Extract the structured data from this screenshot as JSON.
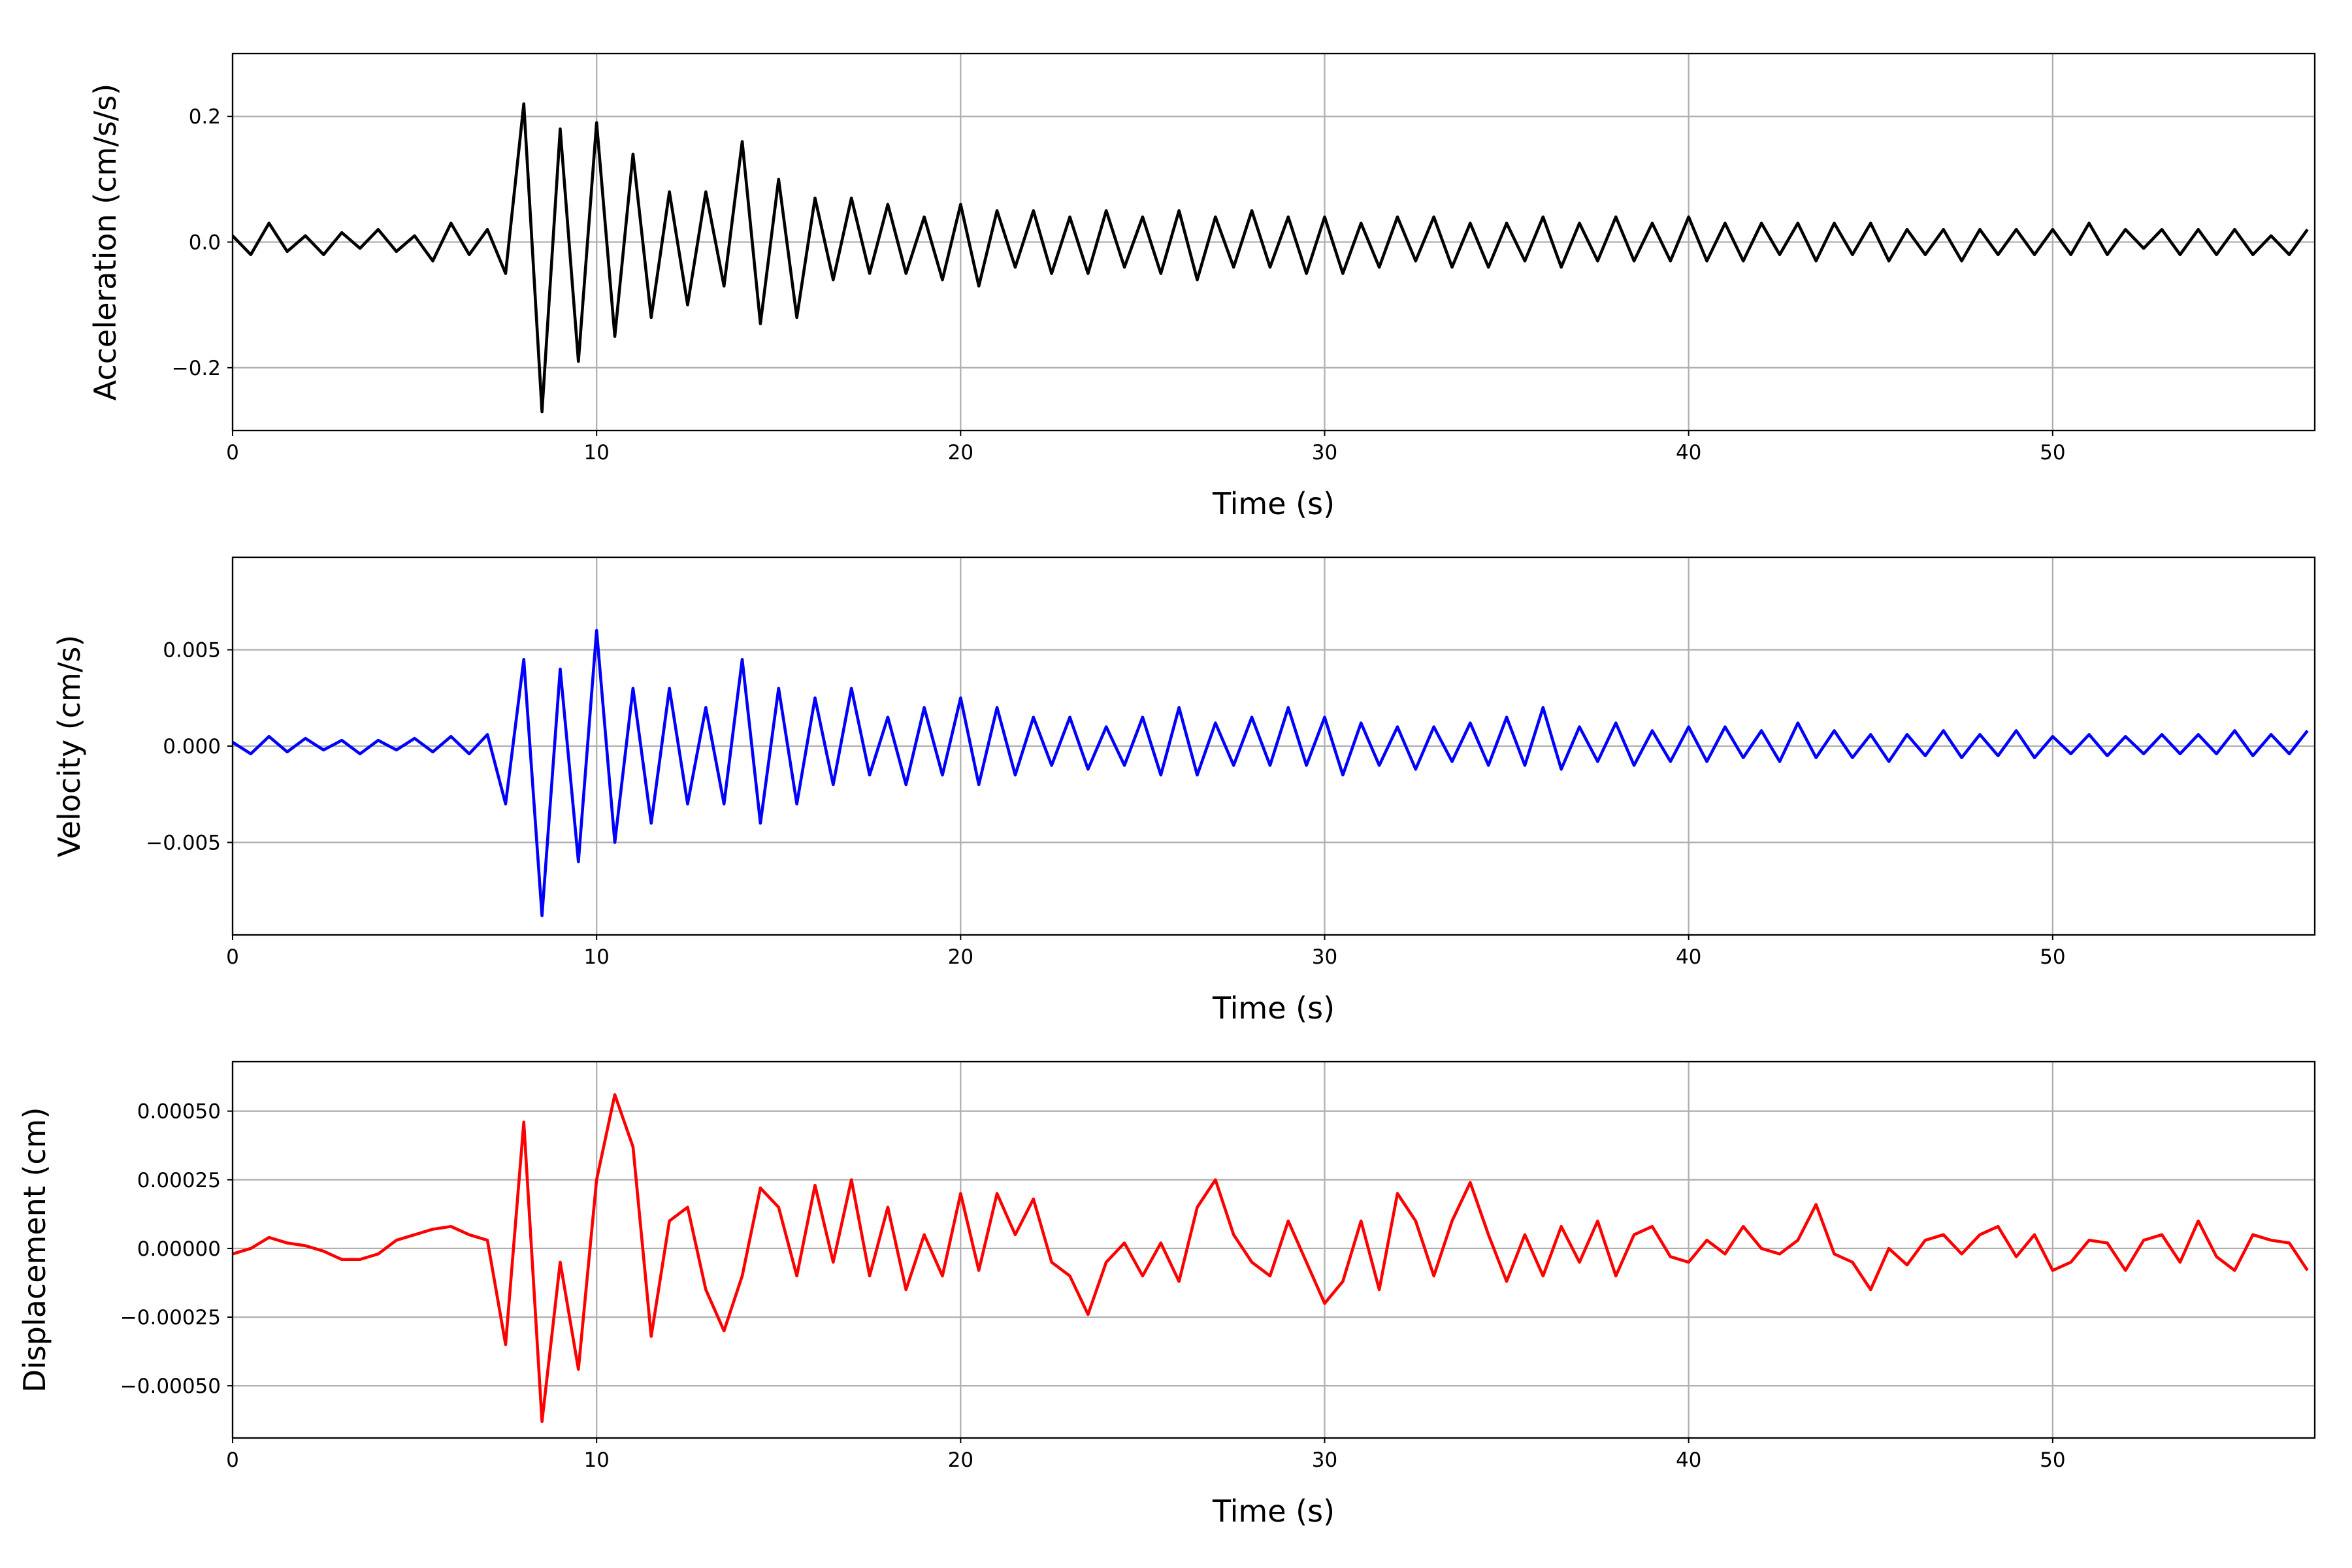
{
  "chart_data": [
    {
      "type": "line",
      "xlabel": "Time (s)",
      "ylabel": "Acceleration (cm/s/s)",
      "color": "#000000",
      "grid": true,
      "xlim": [
        0,
        57.2
      ],
      "ylim": [
        -0.3,
        0.3
      ],
      "xticks": [
        0,
        10,
        20,
        30,
        40,
        50
      ],
      "yticks": [
        {
          "value": -0.2,
          "label": "−0.2"
        },
        {
          "value": 0,
          "label": "0.0"
        },
        0.2
      ],
      "x": [
        0,
        0.5,
        1,
        1.5,
        2,
        2.5,
        3,
        3.5,
        4,
        4.5,
        5,
        5.5,
        6,
        6.5,
        7,
        7.5,
        8,
        8.5,
        9,
        9.5,
        10,
        10.5,
        11,
        11.5,
        12,
        12.5,
        13,
        13.5,
        14,
        14.5,
        15,
        15.5,
        16,
        16.5,
        17,
        17.5,
        18,
        18.5,
        19,
        19.5,
        20,
        20.5,
        21,
        21.5,
        22,
        22.5,
        23,
        23.5,
        24,
        24.5,
        25,
        25.5,
        26,
        26.5,
        27,
        27.5,
        28,
        28.5,
        29,
        29.5,
        30,
        30.5,
        31,
        31.5,
        32,
        32.5,
        33,
        33.5,
        34,
        34.5,
        35,
        35.5,
        36,
        36.5,
        37,
        37.5,
        38,
        38.5,
        39,
        39.5,
        40,
        40.5,
        41,
        41.5,
        42,
        42.5,
        43,
        43.5,
        44,
        44.5,
        45,
        45.5,
        46,
        46.5,
        47,
        47.5,
        48,
        48.5,
        49,
        49.5,
        50,
        50.5,
        51,
        51.5,
        52,
        52.5,
        53,
        53.5,
        54,
        54.5,
        55,
        55.5,
        56,
        56.5,
        57
      ],
      "values": [
        0.01,
        -0.02,
        0.03,
        -0.015,
        0.01,
        -0.02,
        0.015,
        -0.01,
        0.02,
        -0.015,
        0.01,
        -0.03,
        0.03,
        -0.02,
        0.02,
        -0.05,
        0.22,
        -0.27,
        0.18,
        -0.19,
        0.19,
        -0.15,
        0.14,
        -0.12,
        0.08,
        -0.1,
        0.08,
        -0.07,
        0.16,
        -0.13,
        0.1,
        -0.12,
        0.07,
        -0.06,
        0.07,
        -0.05,
        0.06,
        -0.05,
        0.04,
        -0.06,
        0.06,
        -0.07,
        0.05,
        -0.04,
        0.05,
        -0.05,
        0.04,
        -0.05,
        0.05,
        -0.04,
        0.04,
        -0.05,
        0.05,
        -0.06,
        0.04,
        -0.04,
        0.05,
        -0.04,
        0.04,
        -0.05,
        0.04,
        -0.05,
        0.03,
        -0.04,
        0.04,
        -0.03,
        0.04,
        -0.04,
        0.03,
        -0.04,
        0.03,
        -0.03,
        0.04,
        -0.04,
        0.03,
        -0.03,
        0.04,
        -0.03,
        0.03,
        -0.03,
        0.04,
        -0.03,
        0.03,
        -0.03,
        0.03,
        -0.02,
        0.03,
        -0.03,
        0.03,
        -0.02,
        0.03,
        -0.03,
        0.02,
        -0.02,
        0.02,
        -0.03,
        0.02,
        -0.02,
        0.02,
        -0.02,
        0.02,
        -0.02,
        0.03,
        -0.02,
        0.02,
        -0.01,
        0.02,
        -0.02,
        0.02,
        -0.02,
        0.02,
        -0.02,
        0.01,
        -0.02,
        0.02
      ]
    },
    {
      "type": "line",
      "xlabel": "Time (s)",
      "ylabel": "Velocity (cm/s)",
      "color": "#0000ff",
      "grid": true,
      "xlim": [
        0,
        57.2
      ],
      "ylim": [
        -0.0098,
        0.0098
      ],
      "xticks": [
        0,
        10,
        20,
        30,
        40,
        50
      ],
      "yticks": [
        {
          "value": -0.005,
          "label": "−0.005"
        },
        {
          "value": 0,
          "label": "0.000"
        },
        0.005
      ],
      "x": [
        0,
        0.5,
        1,
        1.5,
        2,
        2.5,
        3,
        3.5,
        4,
        4.5,
        5,
        5.5,
        6,
        6.5,
        7,
        7.5,
        8,
        8.5,
        9,
        9.5,
        10,
        10.5,
        11,
        11.5,
        12,
        12.5,
        13,
        13.5,
        14,
        14.5,
        15,
        15.5,
        16,
        16.5,
        17,
        17.5,
        18,
        18.5,
        19,
        19.5,
        20,
        20.5,
        21,
        21.5,
        22,
        22.5,
        23,
        23.5,
        24,
        24.5,
        25,
        25.5,
        26,
        26.5,
        27,
        27.5,
        28,
        28.5,
        29,
        29.5,
        30,
        30.5,
        31,
        31.5,
        32,
        32.5,
        33,
        33.5,
        34,
        34.5,
        35,
        35.5,
        36,
        36.5,
        37,
        37.5,
        38,
        38.5,
        39,
        39.5,
        40,
        40.5,
        41,
        41.5,
        42,
        42.5,
        43,
        43.5,
        44,
        44.5,
        45,
        45.5,
        46,
        46.5,
        47,
        47.5,
        48,
        48.5,
        49,
        49.5,
        50,
        50.5,
        51,
        51.5,
        52,
        52.5,
        53,
        53.5,
        54,
        54.5,
        55,
        55.5,
        56,
        56.5,
        57
      ],
      "values": [
        0.0002,
        -0.0004,
        0.0005,
        -0.0003,
        0.0004,
        -0.0002,
        0.0003,
        -0.0004,
        0.0003,
        -0.0002,
        0.0004,
        -0.0003,
        0.0005,
        -0.0004,
        0.0006,
        -0.003,
        0.0045,
        -0.0088,
        0.004,
        -0.006,
        0.006,
        -0.005,
        0.003,
        -0.004,
        0.003,
        -0.003,
        0.002,
        -0.003,
        0.0045,
        -0.004,
        0.003,
        -0.003,
        0.0025,
        -0.002,
        0.003,
        -0.0015,
        0.0015,
        -0.002,
        0.002,
        -0.0015,
        0.0025,
        -0.002,
        0.002,
        -0.0015,
        0.0015,
        -0.001,
        0.0015,
        -0.0012,
        0.001,
        -0.001,
        0.0015,
        -0.0015,
        0.002,
        -0.0015,
        0.0012,
        -0.001,
        0.0015,
        -0.001,
        0.002,
        -0.001,
        0.0015,
        -0.0015,
        0.0012,
        -0.001,
        0.001,
        -0.0012,
        0.001,
        -0.0008,
        0.0012,
        -0.001,
        0.0015,
        -0.001,
        0.002,
        -0.0012,
        0.001,
        -0.0008,
        0.0012,
        -0.001,
        0.0008,
        -0.0008,
        0.001,
        -0.0008,
        0.001,
        -0.0006,
        0.0008,
        -0.0008,
        0.0012,
        -0.0006,
        0.0008,
        -0.0006,
        0.0006,
        -0.0008,
        0.0006,
        -0.0005,
        0.0008,
        -0.0006,
        0.0006,
        -0.0005,
        0.0008,
        -0.0006,
        0.0005,
        -0.0004,
        0.0006,
        -0.0005,
        0.0005,
        -0.0004,
        0.0006,
        -0.0004,
        0.0006,
        -0.0004,
        0.0008,
        -0.0005,
        0.0006,
        -0.0004,
        0.0008
      ]
    },
    {
      "type": "line",
      "xlabel": "Time (s)",
      "ylabel": "Displacement (cm)",
      "color": "#ff0000",
      "grid": true,
      "xlim": [
        0,
        57.2
      ],
      "ylim": [
        -0.00069,
        0.00068
      ],
      "xticks": [
        0,
        10,
        20,
        30,
        40,
        50
      ],
      "yticks": [
        {
          "value": -0.0005,
          "label": "−0.00050"
        },
        {
          "value": -0.00025,
          "label": "−0.00025"
        },
        {
          "value": 0,
          "label": "0.00000"
        },
        {
          "value": 0.00025,
          "label": "0.00025"
        },
        {
          "value": 0.0005,
          "label": "0.00050"
        }
      ],
      "x": [
        0,
        0.5,
        1,
        1.5,
        2,
        2.5,
        3,
        3.5,
        4,
        4.5,
        5,
        5.5,
        6,
        6.5,
        7,
        7.5,
        8,
        8.5,
        9,
        9.5,
        10,
        10.5,
        11,
        11.5,
        12,
        12.5,
        13,
        13.5,
        14,
        14.5,
        15,
        15.5,
        16,
        16.5,
        17,
        17.5,
        18,
        18.5,
        19,
        19.5,
        20,
        20.5,
        21,
        21.5,
        22,
        22.5,
        23,
        23.5,
        24,
        24.5,
        25,
        25.5,
        26,
        26.5,
        27,
        27.5,
        28,
        28.5,
        29,
        29.5,
        30,
        30.5,
        31,
        31.5,
        32,
        32.5,
        33,
        33.5,
        34,
        34.5,
        35,
        35.5,
        36,
        36.5,
        37,
        37.5,
        38,
        38.5,
        39,
        39.5,
        40,
        40.5,
        41,
        41.5,
        42,
        42.5,
        43,
        43.5,
        44,
        44.5,
        45,
        45.5,
        46,
        46.5,
        47,
        47.5,
        48,
        48.5,
        49,
        49.5,
        50,
        50.5,
        51,
        51.5,
        52,
        52.5,
        53,
        53.5,
        54,
        54.5,
        55,
        55.5,
        56,
        56.5,
        57
      ],
      "values": [
        -2e-05,
        0,
        4e-05,
        2e-05,
        1e-05,
        -1e-05,
        -4e-05,
        -4e-05,
        -2e-05,
        3e-05,
        5e-05,
        7e-05,
        8e-05,
        5e-05,
        3e-05,
        -0.00035,
        0.00046,
        -0.00063,
        -5e-05,
        -0.00044,
        0.00025,
        0.00056,
        0.00037,
        -0.00032,
        0.0001,
        0.00015,
        -0.00015,
        -0.0003,
        -0.0001,
        0.00022,
        0.00015,
        -0.0001,
        0.00023,
        -5e-05,
        0.00025,
        -0.0001,
        0.00015,
        -0.00015,
        5e-05,
        -0.0001,
        0.0002,
        -8e-05,
        0.0002,
        5e-05,
        0.00018,
        -5e-05,
        -0.0001,
        -0.00024,
        -5e-05,
        2e-05,
        -0.0001,
        2e-05,
        -0.00012,
        0.00015,
        0.00025,
        5e-05,
        -5e-05,
        -0.0001,
        0.0001,
        -5e-05,
        -0.0002,
        -0.00012,
        0.0001,
        -0.00015,
        0.0002,
        0.0001,
        -0.0001,
        0.0001,
        0.00024,
        5e-05,
        -0.00012,
        5e-05,
        -0.0001,
        8e-05,
        -5e-05,
        0.0001,
        -0.0001,
        5e-05,
        8e-05,
        -3e-05,
        -5e-05,
        3e-05,
        -2e-05,
        8e-05,
        0,
        -2e-05,
        3e-05,
        0.00016,
        -2e-05,
        -5e-05,
        -0.00015,
        0,
        -6e-05,
        3e-05,
        5e-05,
        -2e-05,
        5e-05,
        8e-05,
        -3e-05,
        5e-05,
        -8e-05,
        -5e-05,
        3e-05,
        2e-05,
        -8e-05,
        3e-05,
        5e-05,
        -5e-05,
        0.0001,
        -3e-05,
        -8e-05,
        5e-05,
        3e-05,
        2e-05,
        -8e-05
      ]
    }
  ]
}
